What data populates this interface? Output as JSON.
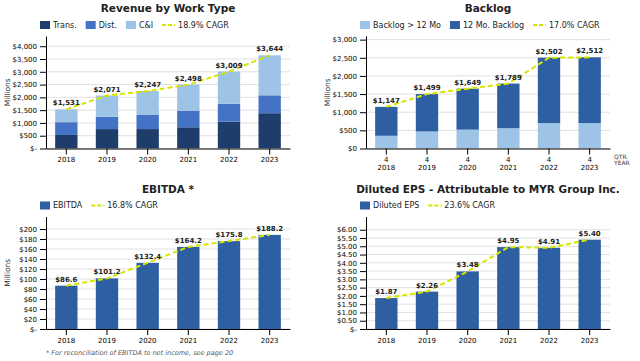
{
  "chart_data": [
    {
      "type": "bar",
      "title": "Revenue by Work Type",
      "y_label": "Millions",
      "categories": [
        "2018",
        "2019",
        "2020",
        "2021",
        "2022",
        "2023"
      ],
      "stacked": true,
      "grid": true,
      "legend": "upper left",
      "ylim": [
        0,
        4400
      ],
      "yticks": [
        {
          "value": 0,
          "label": "$-"
        },
        {
          "value": 500,
          "label": "$500"
        },
        {
          "value": 1000,
          "label": "$1,000"
        },
        {
          "value": 1500,
          "label": "$1,500"
        },
        {
          "value": 2000,
          "label": "$2,000"
        },
        {
          "value": 2500,
          "label": "$2,500"
        },
        {
          "value": 3000,
          "label": "$3,000"
        },
        {
          "value": 3500,
          "label": "$3,500"
        },
        {
          "value": 4000,
          "label": "$4,000"
        }
      ],
      "series": [
        {
          "name": "Trans.",
          "color": "#1f3d6b",
          "values": [
            530,
            760,
            760,
            830,
            1050,
            1380
          ]
        },
        {
          "name": "Dist.",
          "color": "#4472c4",
          "values": [
            500,
            480,
            550,
            650,
            700,
            700
          ]
        },
        {
          "name": "C&I",
          "color": "#9dc3e6",
          "values": [
            501,
            831,
            937,
            1018,
            1259,
            1564
          ]
        },
        {
          "name": "18.9% CAGR",
          "type": "line",
          "line_style": "dashed",
          "color": "#d4e600",
          "values": [
            1531,
            2071,
            2247,
            2498,
            3009,
            3644
          ],
          "data_labels": true,
          "value_labels": [
            "$1,531",
            "$2,071",
            "$2,247",
            "$2,498",
            "$3,009",
            "$3,644"
          ]
        }
      ]
    },
    {
      "type": "bar",
      "title": "Backlog",
      "y_label": "Millions",
      "x_label": "QTR.\nYEAR",
      "categories": [
        "4\n2018",
        "4\n2019",
        "4\n2020",
        "4\n2021",
        "4\n2022",
        "4\n2023"
      ],
      "stacked": true,
      "grid": true,
      "legend": "upper left",
      "ylim": [
        0,
        3100
      ],
      "yticks": [
        {
          "value": 0,
          "label": "$0"
        },
        {
          "value": 500,
          "label": "$500"
        },
        {
          "value": 1000,
          "label": "$1,000"
        },
        {
          "value": 1500,
          "label": "$1,500"
        },
        {
          "value": 2000,
          "label": "$2,000"
        },
        {
          "value": 2500,
          "label": "$2,500"
        },
        {
          "value": 3000,
          "label": "$3,000"
        }
      ],
      "series": [
        {
          "name": "Backlog > 12 Mo",
          "color": "#9dc3e6",
          "values": [
            350,
            470,
            520,
            560,
            700,
            700
          ]
        },
        {
          "name": "12 Mo. Backlog",
          "color": "#2e5fa3",
          "values": [
            797,
            1029,
            1129,
            1229,
            1802,
            1812
          ]
        },
        {
          "name": "17.0% CAGR",
          "type": "line",
          "line_style": "dashed",
          "color": "#d4e600",
          "values": [
            1147,
            1499,
            1649,
            1789,
            2502,
            2512
          ],
          "data_labels": true,
          "value_labels": [
            "$1,147",
            "$1,499",
            "$1,649",
            "$1,789",
            "$2,502",
            "$2,512"
          ]
        }
      ]
    },
    {
      "type": "bar",
      "title": "EBITDA *",
      "y_label": "Millions",
      "annotations": [
        "* For reconciliation of EBITDA to net income, see page 20"
      ],
      "categories": [
        "2018",
        "2019",
        "2020",
        "2021",
        "2022",
        "2023"
      ],
      "stacked": false,
      "grid": true,
      "legend": "upper left",
      "ylim": [
        0,
        225
      ],
      "yticks": [
        {
          "value": 0,
          "label": "$-"
        },
        {
          "value": 20,
          "label": "$20"
        },
        {
          "value": 40,
          "label": "$40"
        },
        {
          "value": 60,
          "label": "$60"
        },
        {
          "value": 80,
          "label": "$80"
        },
        {
          "value": 100,
          "label": "$100"
        },
        {
          "value": 120,
          "label": "$120"
        },
        {
          "value": 140,
          "label": "$140"
        },
        {
          "value": 160,
          "label": "$160"
        },
        {
          "value": 180,
          "label": "$180"
        },
        {
          "value": 200,
          "label": "$200"
        }
      ],
      "series": [
        {
          "name": "EBITDA",
          "color": "#2e5fa3",
          "values": [
            86.6,
            101.2,
            132.4,
            164.2,
            175.8,
            188.2
          ]
        },
        {
          "name": "16.8% CAGR",
          "type": "line",
          "line_style": "dashed",
          "color": "#d4e600",
          "values": [
            86.6,
            101.2,
            132.4,
            164.2,
            175.8,
            188.2
          ],
          "data_labels": true,
          "value_labels": [
            "$86.6",
            "$101.2",
            "$132.4",
            "$164.2",
            "$175.8",
            "$188.2"
          ]
        }
      ]
    },
    {
      "type": "bar",
      "title": "Diluted EPS - Attributable to MYR Group Inc.",
      "categories": [
        "2018",
        "2019",
        "2020",
        "2021",
        "2022",
        "2023"
      ],
      "stacked": false,
      "grid": true,
      "legend": "upper left",
      "ylim": [
        0,
        6.8
      ],
      "yticks": [
        {
          "value": 0.0,
          "label": "$-"
        },
        {
          "value": 0.5,
          "label": "$0.50"
        },
        {
          "value": 1.0,
          "label": "$1.00"
        },
        {
          "value": 1.5,
          "label": "$1.50"
        },
        {
          "value": 2.0,
          "label": "$2.00"
        },
        {
          "value": 2.5,
          "label": "$2.50"
        },
        {
          "value": 3.0,
          "label": "$3.00"
        },
        {
          "value": 3.5,
          "label": "$3.50"
        },
        {
          "value": 4.0,
          "label": "$4.00"
        },
        {
          "value": 4.5,
          "label": "$4.50"
        },
        {
          "value": 5.0,
          "label": "$5.00"
        },
        {
          "value": 5.5,
          "label": "$5.50"
        },
        {
          "value": 6.0,
          "label": "$6.00"
        }
      ],
      "series": [
        {
          "name": "Diluted EPS",
          "color": "#2e5fa3",
          "values": [
            1.87,
            2.26,
            3.48,
            4.95,
            4.91,
            5.4
          ]
        },
        {
          "name": "23.6% CAGR",
          "type": "line",
          "line_style": "dashed",
          "color": "#d4e600",
          "values": [
            1.87,
            2.26,
            3.48,
            4.95,
            4.91,
            5.4
          ],
          "data_labels": true,
          "value_labels": [
            "$1.87",
            "$2.26",
            "$3.48",
            "$4.95",
            "$4.91",
            "$5.40"
          ]
        }
      ]
    }
  ]
}
